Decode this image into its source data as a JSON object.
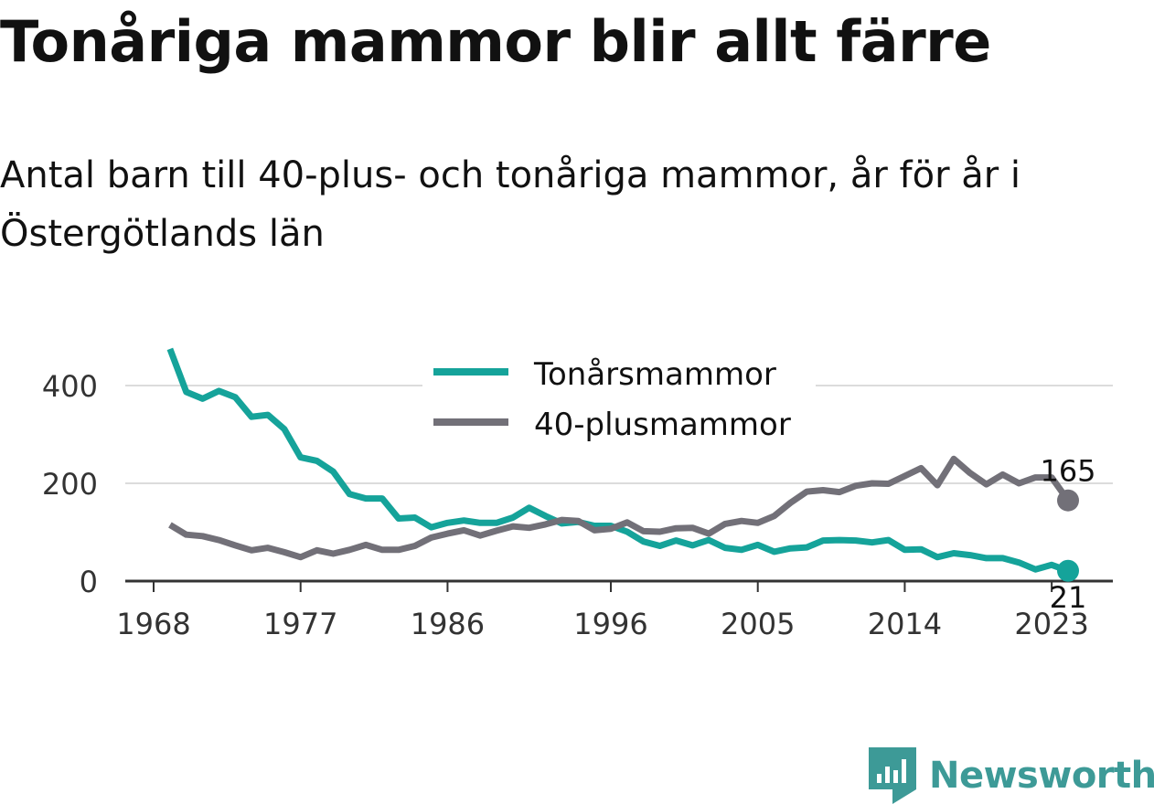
{
  "title": "Tonåriga mammor blir allt färre",
  "subtitle": "Antal barn till 40-plus- och tonåriga mammor, år för år i Östergötlands län",
  "logo": {
    "text": "Newsworthy",
    "icon": "bar-chart-shield-icon"
  },
  "colors": {
    "teen": "#15a39a",
    "forty": "#727078",
    "grid": "#dcdcdc",
    "axis": "#333333",
    "brand": "#3d9a97"
  },
  "chart_data": {
    "type": "line",
    "title": "",
    "xlabel": "",
    "ylabel": "",
    "xlim": [
      1968,
      2024
    ],
    "ylim": [
      0,
      500
    ],
    "grid": true,
    "legend_position": "top-center",
    "x_ticks": [
      1968,
      1977,
      1986,
      1996,
      2005,
      2014,
      2023
    ],
    "y_ticks": [
      0,
      200,
      400
    ],
    "x": [
      1969,
      1970,
      1971,
      1972,
      1973,
      1974,
      1975,
      1976,
      1977,
      1978,
      1979,
      1980,
      1981,
      1982,
      1983,
      1984,
      1985,
      1986,
      1987,
      1988,
      1989,
      1990,
      1991,
      1992,
      1993,
      1994,
      1995,
      1996,
      1997,
      1998,
      1999,
      2000,
      2001,
      2002,
      2003,
      2004,
      2005,
      2006,
      2007,
      2008,
      2009,
      2010,
      2011,
      2012,
      2013,
      2014,
      2015,
      2016,
      2017,
      2018,
      2019,
      2020,
      2021,
      2022,
      2023,
      2024
    ],
    "series": [
      {
        "name": "Tonårsmammor",
        "color": "#15a39a",
        "end_label": "21",
        "values": [
          475,
          387,
          373,
          389,
          376,
          336,
          340,
          311,
          253,
          246,
          224,
          178,
          169,
          169,
          128,
          130,
          110,
          119,
          124,
          119,
          119,
          130,
          150,
          133,
          118,
          121,
          113,
          113,
          101,
          81,
          72,
          83,
          73,
          84,
          68,
          64,
          74,
          60,
          67,
          69,
          83,
          84,
          83,
          79,
          84,
          64,
          65,
          49,
          57,
          53,
          47,
          47,
          38,
          24,
          33,
          21
        ]
      },
      {
        "name": "40-plusmammor",
        "color": "#727078",
        "end_label": "165",
        "values": [
          115,
          95,
          92,
          84,
          73,
          63,
          68,
          59,
          49,
          63,
          56,
          64,
          74,
          64,
          64,
          72,
          89,
          97,
          104,
          93,
          103,
          112,
          109,
          116,
          125,
          123,
          104,
          107,
          120,
          102,
          101,
          108,
          109,
          97,
          117,
          123,
          119,
          133,
          160,
          183,
          186,
          182,
          195,
          200,
          199,
          215,
          231,
          196,
          250,
          221,
          198,
          218,
          200,
          212,
          212,
          165
        ]
      }
    ]
  }
}
